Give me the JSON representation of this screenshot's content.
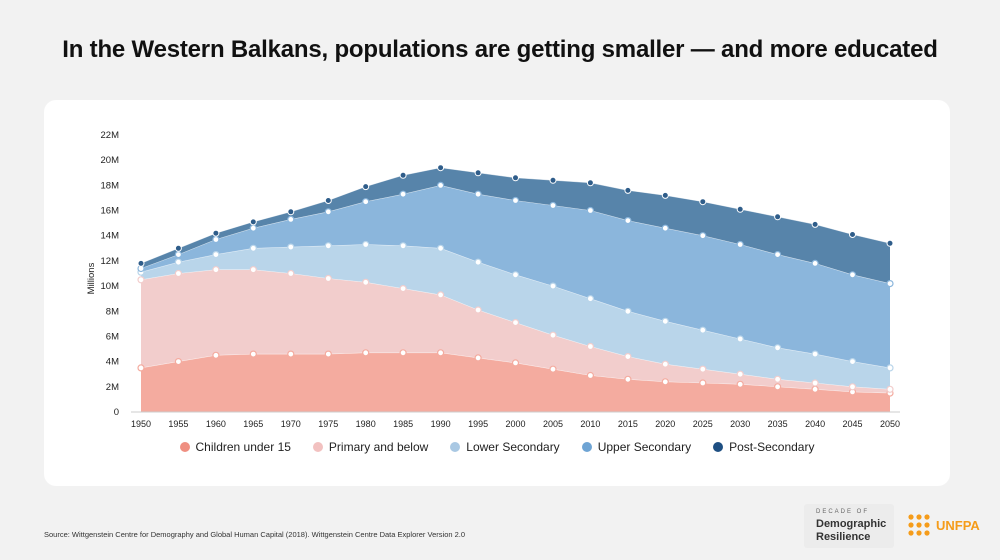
{
  "title": "In the Western Balkans, populations are getting smaller — and more educated",
  "source": "Source: Wittgenstein Centre for Demography and Global Human Capital (2018). Wittgenstein Centre Data Explorer Version 2.0",
  "logos": {
    "decade_line1": "DECADE OF",
    "decade_line2": "Demographic",
    "decade_line3": "Resilience",
    "unfpa": "UNFPA"
  },
  "chart_data": {
    "type": "area",
    "stacked": true,
    "ylabel": "Millions",
    "ylim": [
      0,
      22
    ],
    "yticks": [
      0,
      2,
      4,
      6,
      8,
      10,
      12,
      14,
      16,
      18,
      20,
      22
    ],
    "ytick_labels": [
      "0",
      "2M",
      "4M",
      "6M",
      "8M",
      "10M",
      "12M",
      "14M",
      "16M",
      "18M",
      "20M",
      "22M"
    ],
    "x": [
      1950,
      1955,
      1960,
      1965,
      1970,
      1975,
      1980,
      1985,
      1990,
      1995,
      2000,
      2005,
      2010,
      2015,
      2020,
      2025,
      2030,
      2035,
      2040,
      2045,
      2050
    ],
    "legend_position": "bottom",
    "series": [
      {
        "name": "Children under 15",
        "color": "#f4ab9f",
        "legend_color": "#ef8f81",
        "values": [
          3.5,
          4.0,
          4.5,
          4.6,
          4.6,
          4.6,
          4.7,
          4.7,
          4.7,
          4.3,
          3.9,
          3.4,
          2.9,
          2.6,
          2.4,
          2.3,
          2.2,
          2.0,
          1.8,
          1.6,
          1.5
        ]
      },
      {
        "name": "Primary and below",
        "color": "#f2cdcc",
        "legend_color": "#f2c1c0",
        "values": [
          7.0,
          7.0,
          6.8,
          6.7,
          6.4,
          6.0,
          5.6,
          5.1,
          4.6,
          3.8,
          3.2,
          2.7,
          2.3,
          1.8,
          1.4,
          1.1,
          0.8,
          0.6,
          0.5,
          0.4,
          0.3
        ]
      },
      {
        "name": "Lower Secondary",
        "color": "#b9d5ea",
        "legend_color": "#a9c8e3",
        "values": [
          0.6,
          0.9,
          1.2,
          1.7,
          2.1,
          2.6,
          3.0,
          3.4,
          3.7,
          3.8,
          3.8,
          3.9,
          3.8,
          3.6,
          3.4,
          3.1,
          2.8,
          2.5,
          2.3,
          2.0,
          1.7
        ]
      },
      {
        "name": "Upper Secondary",
        "color": "#8bb6dc",
        "legend_color": "#6ea4d4",
        "values": [
          0.3,
          0.6,
          1.2,
          1.6,
          2.2,
          2.7,
          3.4,
          4.1,
          5.0,
          5.4,
          5.9,
          6.4,
          7.0,
          7.2,
          7.4,
          7.5,
          7.5,
          7.4,
          7.2,
          6.9,
          6.7
        ]
      },
      {
        "name": "Post-Secondary",
        "color": "#5784aa",
        "legend_color": "#1e4f82",
        "values": [
          0.4,
          0.5,
          0.5,
          0.5,
          0.6,
          0.9,
          1.2,
          1.5,
          1.4,
          1.7,
          1.8,
          2.0,
          2.2,
          2.4,
          2.6,
          2.7,
          2.8,
          3.0,
          3.1,
          3.2,
          3.2
        ]
      }
    ]
  }
}
